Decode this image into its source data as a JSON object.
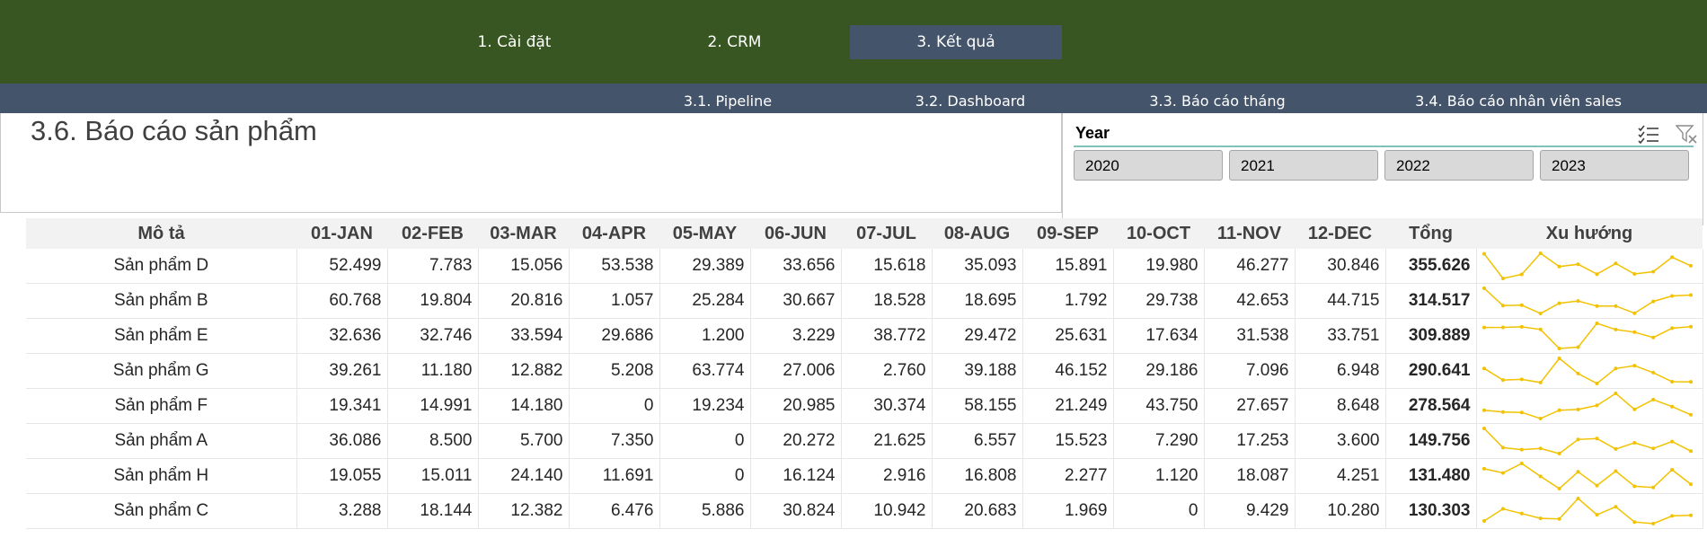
{
  "nav": {
    "tabs": [
      {
        "label": "1. Cài đặt"
      },
      {
        "label": "2. CRM"
      },
      {
        "label": "3. Kết quả"
      }
    ],
    "subtabs": [
      {
        "label": "3.1. Pipeline"
      },
      {
        "label": "3.2. Dashboard"
      },
      {
        "label": "3.3. Báo cáo tháng"
      },
      {
        "label": "3.4. Báo cáo nhân viên sales"
      }
    ]
  },
  "page": {
    "title": "3.6. Báo cáo sản phẩm"
  },
  "slicer": {
    "title": "Year",
    "icons": [
      "multi-select-icon",
      "clear-filter-icon"
    ],
    "options": [
      "2020",
      "2021",
      "2022",
      "2023"
    ]
  },
  "table": {
    "headers": [
      "Mô tả",
      "01-JAN",
      "02-FEB",
      "03-MAR",
      "04-APR",
      "05-MAY",
      "06-JUN",
      "07-JUL",
      "08-AUG",
      "09-SEP",
      "10-OCT",
      "11-NOV",
      "12-DEC",
      "Tổng",
      "Xu hướng"
    ],
    "rows": [
      {
        "name": "Sản phẩm D",
        "values": [
          "52.499",
          "7.783",
          "15.056",
          "53.538",
          "29.389",
          "33.656",
          "15.618",
          "35.093",
          "15.891",
          "19.980",
          "46.277",
          "30.846"
        ],
        "total": "355.626",
        "trend": [
          52499,
          7783,
          15056,
          53538,
          29389,
          33656,
          15618,
          35093,
          15891,
          19980,
          46277,
          30846
        ]
      },
      {
        "name": "Sản phẩm B",
        "values": [
          "60.768",
          "19.804",
          "20.816",
          "1.057",
          "25.284",
          "30.667",
          "18.528",
          "18.695",
          "1.792",
          "29.738",
          "42.653",
          "44.715"
        ],
        "total": "314.517",
        "trend": [
          60768,
          19804,
          20816,
          1057,
          25284,
          30667,
          18528,
          18695,
          1792,
          29738,
          42653,
          44715
        ]
      },
      {
        "name": "Sản phẩm E",
        "values": [
          "32.636",
          "32.746",
          "33.594",
          "29.686",
          "1.200",
          "3.229",
          "38.772",
          "29.472",
          "25.631",
          "17.634",
          "31.538",
          "33.751"
        ],
        "total": "309.889",
        "trend": [
          32636,
          32746,
          33594,
          29686,
          1200,
          3229,
          38772,
          29472,
          25631,
          17634,
          31538,
          33751
        ]
      },
      {
        "name": "Sản phẩm G",
        "values": [
          "39.261",
          "11.180",
          "12.882",
          "5.208",
          "63.774",
          "27.006",
          "2.760",
          "39.188",
          "46.152",
          "29.186",
          "7.096",
          "6.948"
        ],
        "total": "290.641",
        "trend": [
          39261,
          11180,
          12882,
          5208,
          63774,
          27006,
          2760,
          39188,
          46152,
          29186,
          7096,
          6948
        ]
      },
      {
        "name": "Sản phẩm F",
        "values": [
          "19.341",
          "14.991",
          "14.180",
          "0",
          "19.234",
          "20.985",
          "30.374",
          "58.155",
          "21.249",
          "43.750",
          "27.657",
          "8.648"
        ],
        "total": "278.564",
        "trend": [
          19341,
          14991,
          14180,
          0,
          19234,
          20985,
          30374,
          58155,
          21249,
          43750,
          27657,
          8648
        ]
      },
      {
        "name": "Sản phẩm A",
        "values": [
          "36.086",
          "8.500",
          "5.700",
          "7.350",
          "0",
          "20.272",
          "21.625",
          "6.557",
          "15.523",
          "7.290",
          "17.253",
          "3.600"
        ],
        "total": "149.756",
        "trend": [
          36086,
          8500,
          5700,
          7350,
          0,
          20272,
          21625,
          6557,
          15523,
          7290,
          17253,
          3600
        ]
      },
      {
        "name": "Sản phẩm H",
        "values": [
          "19.055",
          "15.011",
          "24.140",
          "11.691",
          "0",
          "16.124",
          "2.916",
          "16.808",
          "2.277",
          "1.120",
          "18.087",
          "4.251"
        ],
        "total": "131.480",
        "trend": [
          19055,
          15011,
          24140,
          11691,
          0,
          16124,
          2916,
          16808,
          2277,
          1120,
          18087,
          4251
        ]
      },
      {
        "name": "Sản phẩm C",
        "values": [
          "3.288",
          "18.144",
          "12.382",
          "6.476",
          "5.886",
          "30.824",
          "10.942",
          "20.683",
          "1.969",
          "0",
          "9.429",
          "10.280"
        ],
        "total": "130.303",
        "trend": [
          3288,
          18144,
          12382,
          6476,
          5886,
          30824,
          10942,
          20683,
          1969,
          0,
          9429,
          10280
        ]
      }
    ]
  },
  "colors": {
    "topbar": "#385622",
    "subbar": "#44546a",
    "active_tab": "#44546a",
    "sparkline": "#f2c200",
    "slicer_accent": "#7fc2b8"
  }
}
